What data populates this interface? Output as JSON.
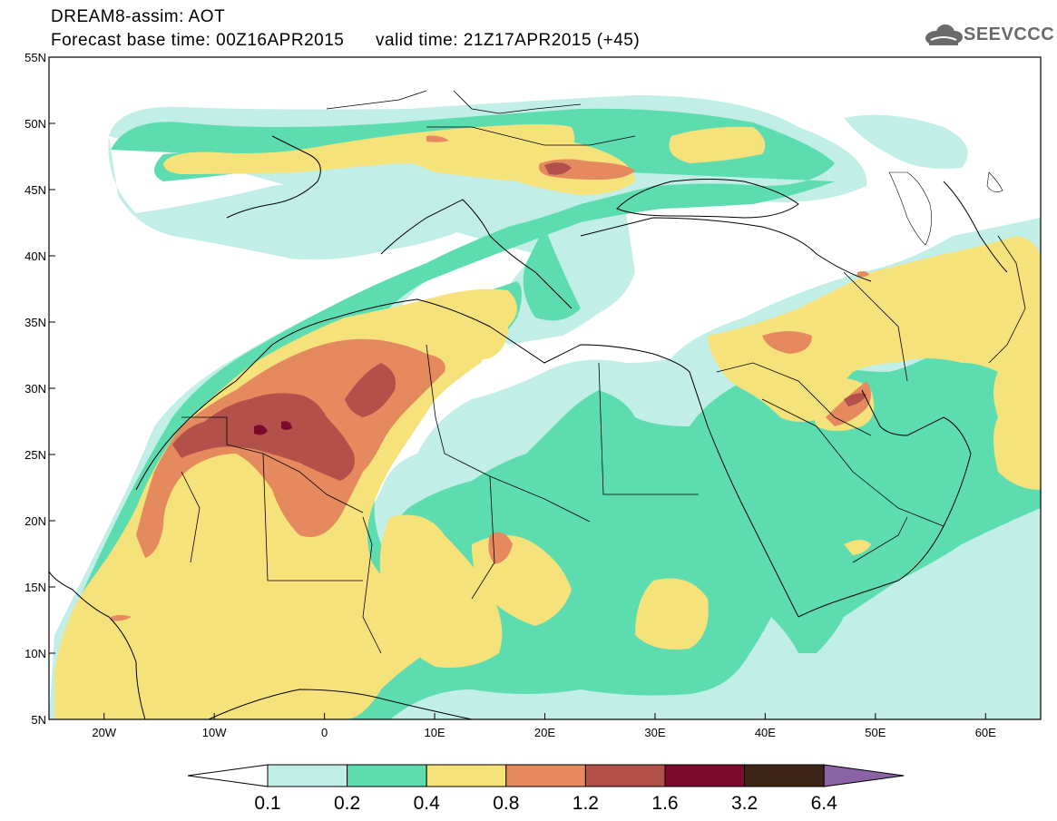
{
  "title": {
    "line1": "DREAM8-assim: AOT",
    "line2": "Forecast base time: 00Z16APR2015      valid time: 21Z17APR2015 (+45)"
  },
  "logo": {
    "text": "SEEVCCC",
    "icon": "cloud-icon"
  },
  "map": {
    "lon_range": [
      -25,
      65
    ],
    "lat_range": [
      5,
      55
    ],
    "lat_ticks": [
      {
        "value": 55,
        "label": "55N"
      },
      {
        "value": 50,
        "label": "50N"
      },
      {
        "value": 45,
        "label": "45N"
      },
      {
        "value": 40,
        "label": "40N"
      },
      {
        "value": 35,
        "label": "35N"
      },
      {
        "value": 30,
        "label": "30N"
      },
      {
        "value": 25,
        "label": "25N"
      },
      {
        "value": 20,
        "label": "20N"
      },
      {
        "value": 15,
        "label": "15N"
      },
      {
        "value": 10,
        "label": "10N"
      },
      {
        "value": 5,
        "label": "5N"
      }
    ],
    "lon_ticks": [
      {
        "value": -20,
        "label": "20W"
      },
      {
        "value": -10,
        "label": "10W"
      },
      {
        "value": 0,
        "label": "0"
      },
      {
        "value": 10,
        "label": "10E"
      },
      {
        "value": 20,
        "label": "20E"
      },
      {
        "value": 30,
        "label": "30E"
      },
      {
        "value": 40,
        "label": "40E"
      },
      {
        "value": 50,
        "label": "50E"
      },
      {
        "value": 60,
        "label": "60E"
      }
    ]
  },
  "colorbar": {
    "levels": [
      "0.1",
      "0.2",
      "0.4",
      "0.8",
      "1.2",
      "1.6",
      "3.2",
      "6.4"
    ],
    "colors": [
      "#ffffff",
      "#c1eee6",
      "#5ddcb0",
      "#f6e27a",
      "#e5895f",
      "#b2514a",
      "#7b0a2c",
      "#3c2417",
      "#8a63a5"
    ]
  }
}
